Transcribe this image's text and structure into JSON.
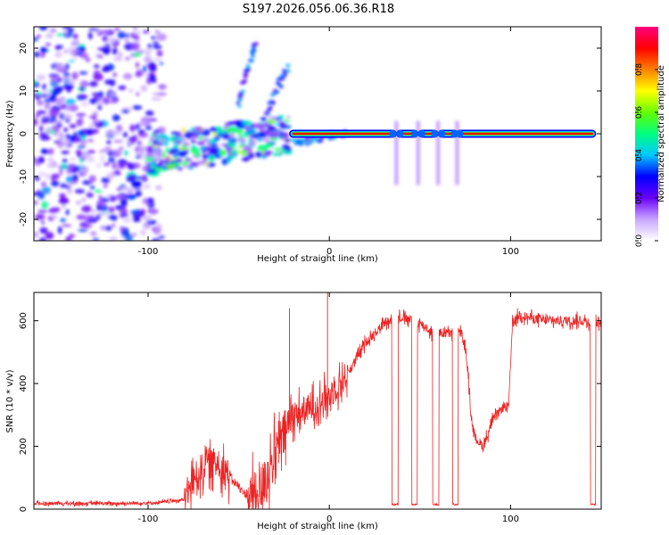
{
  "figure_title": "S197.2026.056.06.36.R18",
  "chart_data": [
    {
      "type": "heatmap",
      "title": "S197.2026.056.06.36.R18",
      "xlabel": "Height of straight line (km)",
      "ylabel": "Frequency (Hz)",
      "xlim": [
        -163,
        150
      ],
      "ylim": [
        -25,
        25
      ],
      "x_ticks": [
        -100,
        0,
        100
      ],
      "x_tick_labels": [
        "-100",
        "0",
        "100"
      ],
      "y_ticks": [
        -20,
        -10,
        0,
        10,
        20
      ],
      "y_tick_labels": [
        "-20",
        "-10",
        "0",
        "10",
        "20"
      ],
      "colorbar": {
        "label": "Normalized spectral amplitude",
        "range": [
          0,
          1
        ],
        "ticks": [
          0.0,
          0.2,
          0.4,
          0.6,
          0.8
        ],
        "tick_labels": [
          "0.0",
          "0.2",
          "0.4",
          "0.6",
          "0.8"
        ],
        "colors": [
          "#ffffff",
          "#c9a6ff",
          "#6a00ff",
          "#0000ff",
          "#00c8ff",
          "#00ff80",
          "#66ff00",
          "#ffff00",
          "#ff8000",
          "#ff0000",
          "#ff0080"
        ]
      },
      "carrier_line": {
        "frequency": 0,
        "x_range": [
          -20,
          145
        ],
        "amplitude": 0.9,
        "gaps": [
          [
            35,
            39
          ],
          [
            47,
            51
          ],
          [
            58,
            62
          ],
          [
            69,
            72
          ]
        ],
        "color": "#ff2020"
      },
      "features": [
        {
          "name": "noise field",
          "x_range": [
            -163,
            -92
          ],
          "freq_range": [
            -25,
            25
          ],
          "amplitude": 0.3
        },
        {
          "name": "mid-height streaks",
          "x_range": [
            -100,
            -22
          ],
          "freq_range": [
            -8,
            5
          ],
          "amplitude": 0.5
        },
        {
          "name": "rising streak 1",
          "points": [
            [
              -50,
              6
            ],
            [
              -45,
              15
            ],
            [
              -40,
              22
            ]
          ]
        },
        {
          "name": "rising streak 2",
          "points": [
            [
              -35,
              4
            ],
            [
              -28,
              11
            ],
            [
              -23,
              16
            ]
          ]
        },
        {
          "name": "converging branch",
          "points": [
            [
              -20,
              -2
            ],
            [
              -10,
              -1.5
            ],
            [
              0,
              -0.5
            ],
            [
              10,
              0
            ]
          ]
        }
      ]
    },
    {
      "type": "line",
      "xlabel": "Height of straight line (km)",
      "ylabel": "SNR (10 * v/v)",
      "xlim": [
        -163,
        150
      ],
      "ylim": [
        0,
        690
      ],
      "x_ticks": [
        -100,
        0,
        100
      ],
      "x_tick_labels": [
        "-100",
        "0",
        "100"
      ],
      "y_ticks": [
        0,
        200,
        400,
        600
      ],
      "y_tick_labels": [
        "0",
        "200",
        "400",
        "600"
      ],
      "series": [
        {
          "name": "SNR",
          "color": "#ee2222",
          "baseline_x": [
            -163,
            -120,
            -95,
            -80,
            -75,
            -68,
            -60,
            -50,
            -45,
            -40,
            -35,
            -28,
            -20,
            -10,
            0,
            10,
            20,
            30,
            34,
            40,
            46,
            52,
            57,
            63,
            68,
            73,
            76,
            78,
            80,
            85,
            90,
            95,
            99,
            101,
            105,
            110,
            120,
            130,
            140,
            150
          ],
          "baseline_y": [
            18,
            18,
            20,
            30,
            90,
            150,
            140,
            70,
            40,
            40,
            100,
            200,
            300,
            320,
            360,
            430,
            530,
            590,
            610,
            610,
            600,
            585,
            560,
            560,
            560,
            560,
            480,
            310,
            230,
            200,
            280,
            320,
            330,
            590,
            620,
            610,
            600,
            600,
            600,
            590
          ],
          "noise_spans": [
            {
              "x_range": [
                -163,
                -80
              ],
              "amplitude": 10
            },
            {
              "x_range": [
                -80,
                -55
              ],
              "amplitude": 100
            },
            {
              "x_range": [
                -55,
                -45
              ],
              "amplitude": 25
            },
            {
              "x_range": [
                -45,
                -20
              ],
              "amplitude": 150
            },
            {
              "x_range": [
                -20,
                10
              ],
              "amplitude": 90
            },
            {
              "x_range": [
                10,
                150
              ],
              "amplitude": 30
            }
          ],
          "dropouts": [
            [
              34.5,
              38
            ],
            [
              45.5,
              48.5
            ],
            [
              57,
              60.5
            ],
            [
              68,
              71
            ],
            [
              144,
              147
            ]
          ],
          "dropout_level": 15,
          "spikes": [
            {
              "x": -1,
              "y": 690
            },
            {
              "x": -22,
              "y": 640
            }
          ]
        }
      ]
    }
  ]
}
